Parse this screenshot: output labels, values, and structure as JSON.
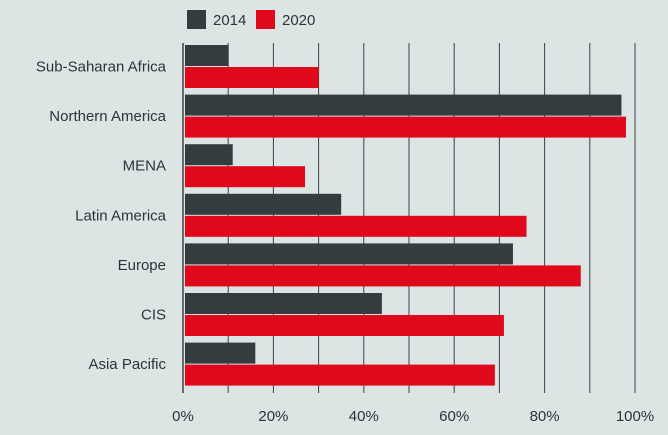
{
  "chart_data": {
    "type": "bar",
    "orientation": "horizontal",
    "categories": [
      "Sub-Saharan Africa",
      "Northern America",
      "MENA",
      "Latin America",
      "Europe",
      "CIS",
      "Asia Pacific"
    ],
    "series": [
      {
        "name": "2014",
        "color": "#353c40",
        "values": [
          10,
          97,
          11,
          35,
          73,
          44,
          16
        ]
      },
      {
        "name": "2020",
        "color": "#e0081b",
        "values": [
          30,
          98,
          27,
          76,
          88,
          71,
          69
        ]
      }
    ],
    "xlim": [
      0,
      100
    ],
    "x_ticks": [
      0,
      20,
      40,
      60,
      80,
      100
    ],
    "x_tick_labels": [
      "0%",
      "20%",
      "40%",
      "60%",
      "80%",
      "100%"
    ],
    "grid": true,
    "legend_position": "top-left"
  }
}
